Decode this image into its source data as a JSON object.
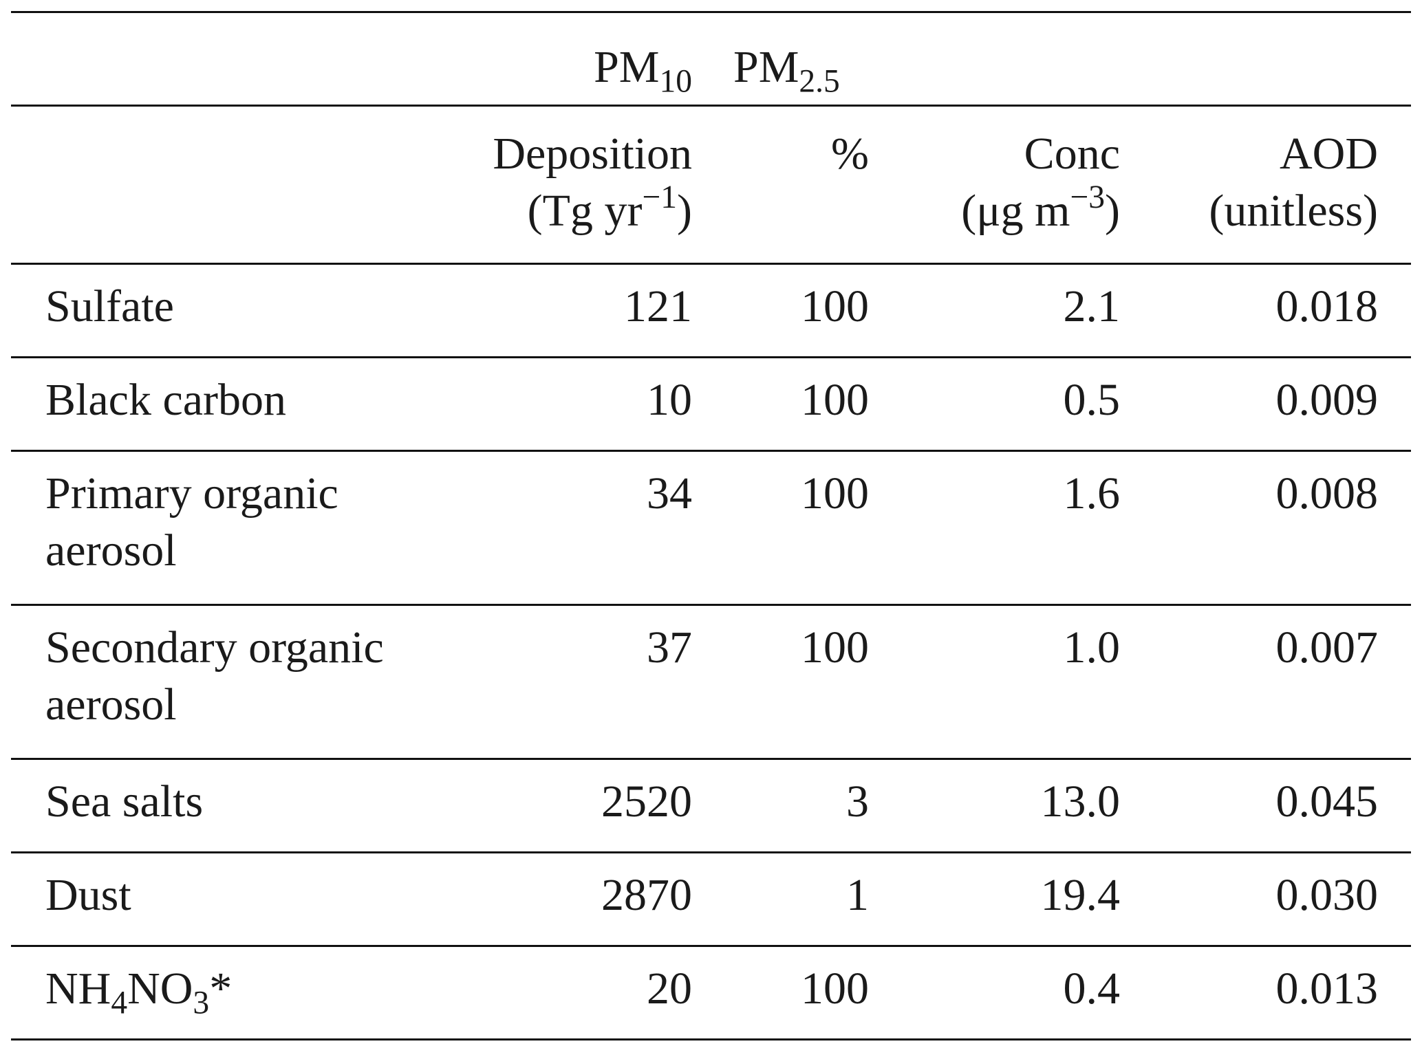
{
  "table": {
    "group_header": {
      "pm10": {
        "base": "PM",
        "sub": "10"
      },
      "pm25": {
        "base": "PM",
        "sub": "2.5"
      }
    },
    "columns": [
      {
        "line1": "Deposition",
        "line2_pre": "(Tg yr",
        "line2_sup": "−1",
        "line2_post": ")"
      },
      {
        "line1": "%",
        "line2_pre": "",
        "line2_sup": "",
        "line2_post": ""
      },
      {
        "line1": "Conc",
        "line2_pre": "(μg m",
        "line2_sup": "−3",
        "line2_post": ")"
      },
      {
        "line1": "AOD",
        "line2_pre": "(unitless)",
        "line2_sup": "",
        "line2_post": ""
      }
    ],
    "rows": [
      {
        "label1": "Sulfate",
        "label2": "",
        "deposition": "121",
        "pct": "100",
        "conc": "2.1",
        "aod": "0.018"
      },
      {
        "label1": "Black carbon",
        "label2": "",
        "deposition": "10",
        "pct": "100",
        "conc": "0.5",
        "aod": "0.009"
      },
      {
        "label1": "Primary organic",
        "label2": "aerosol",
        "deposition": "34",
        "pct": "100",
        "conc": "1.6",
        "aod": "0.008"
      },
      {
        "label1": "Secondary organic",
        "label2": "aerosol",
        "deposition": "37",
        "pct": "100",
        "conc": "1.0",
        "aod": "0.007"
      },
      {
        "label1": "Sea salts",
        "label2": "",
        "deposition": "2520",
        "pct": "3",
        "conc": "13.0",
        "aod": "0.045"
      },
      {
        "label1": "Dust",
        "label2": "",
        "deposition": "2870",
        "pct": "1",
        "conc": "19.4",
        "aod": "0.030"
      }
    ],
    "last_row": {
      "label_parts": [
        "NH",
        "4",
        "NO",
        "3",
        "*"
      ],
      "deposition": "20",
      "pct": "100",
      "conc": "0.4",
      "aod": "0.013"
    }
  }
}
